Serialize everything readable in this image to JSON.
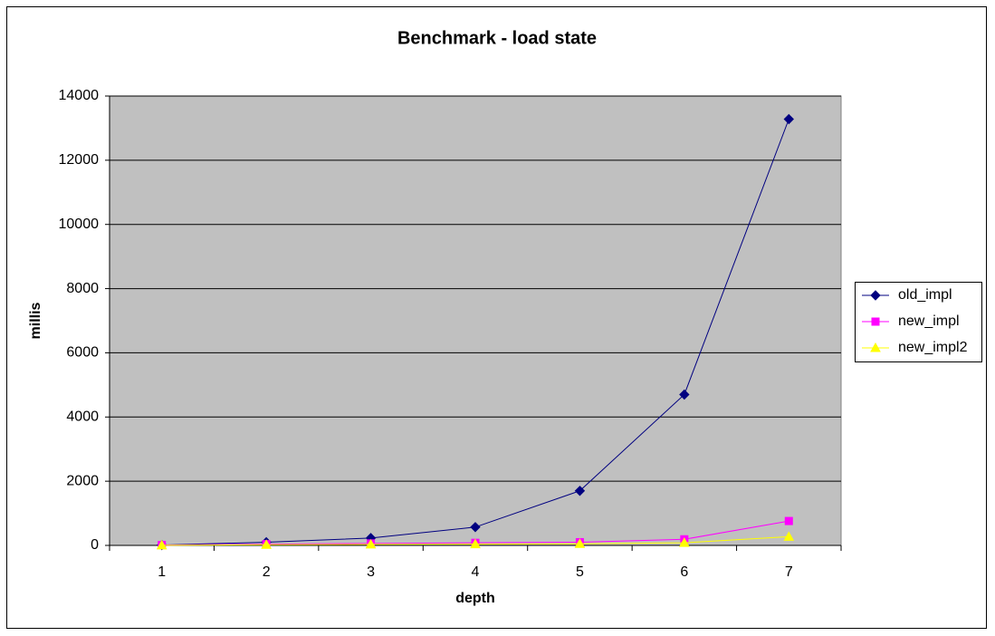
{
  "chart_data": {
    "type": "line",
    "title": "Benchmark - load state",
    "x_label": "depth",
    "y_label": "millis",
    "categories": [
      "1",
      "2",
      "3",
      "4",
      "5",
      "6",
      "7"
    ],
    "series": [
      {
        "name": "old_impl",
        "color": "#000080",
        "marker": "diamond",
        "values": [
          10,
          100,
          230,
          570,
          1700,
          4700,
          13280
        ]
      },
      {
        "name": "new_impl",
        "color": "#ff00ff",
        "marker": "square",
        "values": [
          10,
          40,
          60,
          80,
          100,
          190,
          760
        ]
      },
      {
        "name": "new_impl2",
        "color": "#ffff00",
        "marker": "triangle",
        "values": [
          5,
          20,
          30,
          40,
          50,
          80,
          270
        ]
      }
    ],
    "ylim": [
      0,
      14000
    ],
    "yticks": [
      0,
      2000,
      4000,
      6000,
      8000,
      10000,
      12000,
      14000
    ],
    "grid": true,
    "legend": "right",
    "plot_background": "#c0c0c0"
  }
}
